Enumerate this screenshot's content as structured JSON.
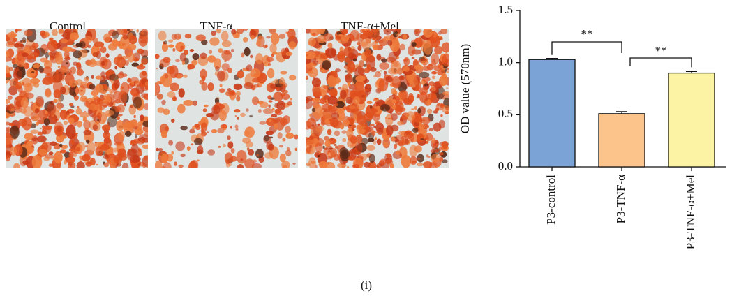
{
  "images": [
    {
      "label": "Control"
    },
    {
      "label": "TNF-α"
    },
    {
      "label": "TNF-α+Mel"
    }
  ],
  "chart_data": {
    "type": "bar",
    "ylabel": "OD value (570nm)",
    "categories": [
      "P3-control",
      "P3-TNF-α",
      "P3-TNF-α+Mel"
    ],
    "values": [
      1.03,
      0.51,
      0.9
    ],
    "errors": [
      0.01,
      0.02,
      0.015
    ],
    "colors": [
      "#7ba3d6",
      "#fcc48a",
      "#fdf3a4"
    ],
    "ylim": [
      0,
      1.5
    ],
    "yticks": [
      {
        "value": 0,
        "label": "0.0"
      },
      0.5,
      {
        "value": 1,
        "label": "1.0"
      },
      1.5
    ],
    "annotations": [
      "**",
      "**"
    ]
  },
  "caption": "(i)"
}
